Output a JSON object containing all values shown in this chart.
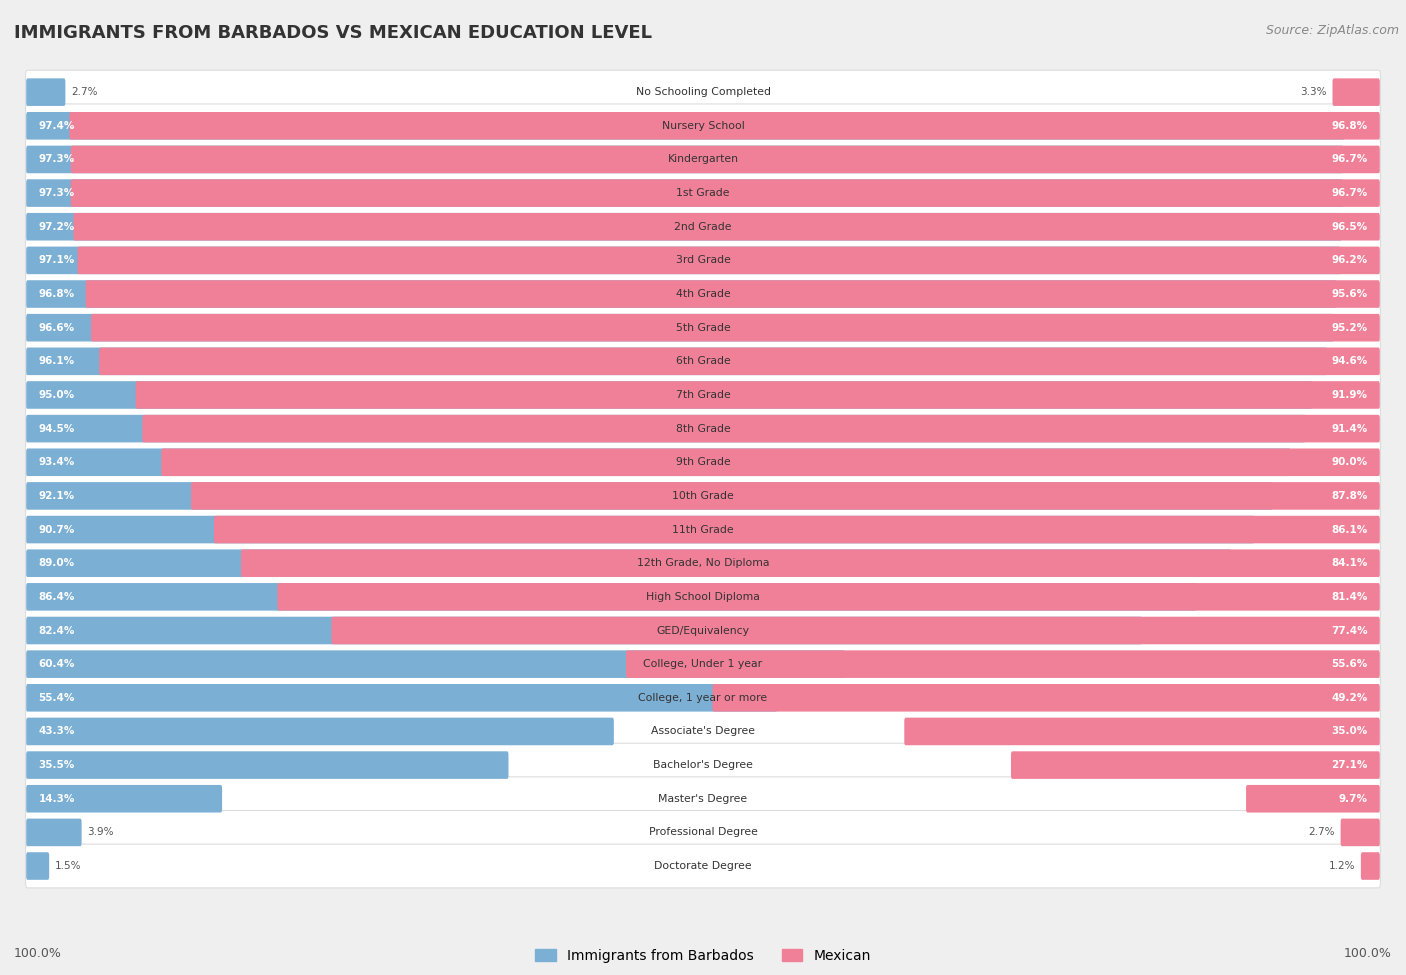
{
  "title": "IMMIGRANTS FROM BARBADOS VS MEXICAN EDUCATION LEVEL",
  "source": "Source: ZipAtlas.com",
  "categories": [
    "No Schooling Completed",
    "Nursery School",
    "Kindergarten",
    "1st Grade",
    "2nd Grade",
    "3rd Grade",
    "4th Grade",
    "5th Grade",
    "6th Grade",
    "7th Grade",
    "8th Grade",
    "9th Grade",
    "10th Grade",
    "11th Grade",
    "12th Grade, No Diploma",
    "High School Diploma",
    "GED/Equivalency",
    "College, Under 1 year",
    "College, 1 year or more",
    "Associate's Degree",
    "Bachelor's Degree",
    "Master's Degree",
    "Professional Degree",
    "Doctorate Degree"
  ],
  "barbados": [
    2.7,
    97.4,
    97.3,
    97.3,
    97.2,
    97.1,
    96.8,
    96.6,
    96.1,
    95.0,
    94.5,
    93.4,
    92.1,
    90.7,
    89.0,
    86.4,
    82.4,
    60.4,
    55.4,
    43.3,
    35.5,
    14.3,
    3.9,
    1.5
  ],
  "mexican": [
    3.3,
    96.8,
    96.7,
    96.7,
    96.5,
    96.2,
    95.6,
    95.2,
    94.6,
    91.9,
    91.4,
    90.0,
    87.8,
    86.1,
    84.1,
    81.4,
    77.4,
    55.6,
    49.2,
    35.0,
    27.1,
    9.7,
    2.7,
    1.2
  ],
  "barbados_color": "#7bafd4",
  "mexican_color": "#f08098",
  "background_color": "#efefef",
  "bar_bg_color": "#ffffff",
  "title_color": "#333333",
  "source_color": "#888888",
  "label_inside_color": "#ffffff",
  "label_outside_color": "#555555",
  "bar_height": 0.62,
  "total_width": 100.0,
  "inside_label_threshold": 5.0
}
